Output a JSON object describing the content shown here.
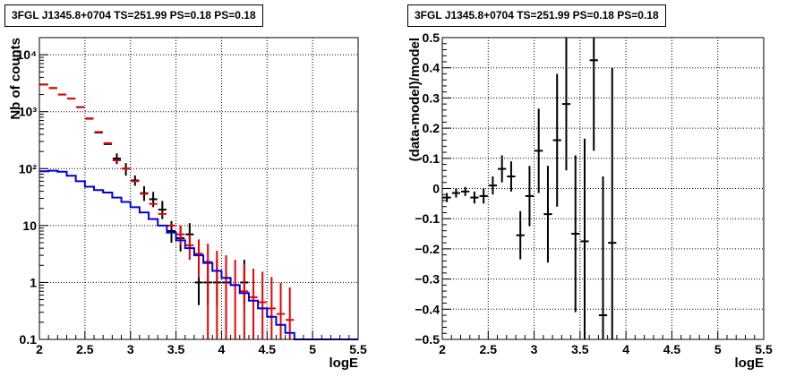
{
  "chart_data": [
    {
      "type": "histogram",
      "title": "3FGL J1345.8+0704 TS=251.99 PS=0.18 PS=0.18",
      "xlabel": "logE",
      "ylabel": "Nb of counts",
      "xlim": [
        2,
        5.5
      ],
      "ylim": [
        0.1,
        20000
      ],
      "yscale": "log",
      "grid": true,
      "x_ticks": [
        "2",
        "2.5",
        "3",
        "3.5",
        "4",
        "4.5",
        "5",
        "5.5"
      ],
      "y_ticks": [
        "0.1",
        "1",
        "10",
        "10²",
        "10³",
        "10⁴"
      ],
      "bin_width": 0.1,
      "series": [
        {
          "color": "#000000",
          "style": "points",
          "x": [
            2.05,
            2.15,
            2.25,
            2.35,
            2.45,
            2.55,
            2.65,
            2.75,
            2.85,
            2.95,
            3.05,
            3.15,
            3.25,
            3.35,
            3.45,
            3.55,
            3.65,
            3.75,
            3.85,
            3.95,
            4.05,
            4.25
          ],
          "y": [
            3000,
            2600,
            2000,
            1700,
            1200,
            760,
            430,
            270,
            150,
            100,
            62,
            37,
            29,
            19,
            8,
            6,
            7,
            1,
            1,
            1,
            1,
            1
          ],
          "yerr_low": [
            0,
            0,
            0,
            0,
            0,
            0,
            0,
            0,
            30,
            25,
            12,
            10,
            8,
            6,
            3,
            2.5,
            3,
            0.6,
            0.6,
            0.6,
            0.6,
            0.6
          ],
          "yerr_high": [
            0,
            0,
            0,
            0,
            0,
            0,
            0,
            0,
            35,
            25,
            14,
            12,
            10,
            8,
            4,
            3.5,
            4,
            1.5,
            1.5,
            1.5,
            1.5,
            1.5
          ]
        },
        {
          "color": "#ee0000",
          "style": "points",
          "x": [
            2.05,
            2.15,
            2.25,
            2.35,
            2.45,
            2.55,
            2.65,
            2.75,
            2.85,
            2.95,
            3.05,
            3.15,
            3.25,
            3.35,
            3.45,
            3.55,
            3.65,
            3.75,
            3.85,
            3.95,
            4.05,
            4.15,
            4.25,
            4.35,
            4.45,
            4.55,
            4.65,
            4.75
          ],
          "y": [
            3000,
            2600,
            2000,
            1700,
            1200,
            750,
            440,
            280,
            140,
            100,
            60,
            36,
            24,
            16,
            10,
            7,
            4.5,
            3.2,
            2.3,
            1.6,
            1.2,
            0.9,
            0.7,
            0.55,
            0.45,
            0.35,
            0.28,
            0.22
          ],
          "yerr_low": [
            0,
            0,
            0,
            0,
            0,
            0,
            0,
            0,
            0,
            0,
            0,
            0,
            0,
            0,
            0,
            2.5,
            2,
            2,
            2.2,
            1.5,
            1.1,
            0.85,
            0.65,
            0.5,
            0.4,
            0.3,
            0.2,
            0.12
          ],
          "yerr_high": [
            0,
            0,
            0,
            0,
            0,
            0,
            0,
            0,
            0,
            0,
            0,
            0,
            0,
            0,
            0,
            3,
            2.5,
            2.5,
            2.5,
            2,
            1.8,
            1.6,
            1.4,
            1.2,
            1.1,
            0.9,
            0.7,
            0.6
          ]
        },
        {
          "color": "#0000dd",
          "style": "step",
          "x_edges": [
            2.0,
            2.1,
            2.2,
            2.3,
            2.4,
            2.5,
            2.6,
            2.7,
            2.8,
            2.9,
            3.0,
            3.1,
            3.2,
            3.3,
            3.4,
            3.5,
            3.6,
            3.7,
            3.8,
            3.9,
            4.0,
            4.1,
            4.2,
            4.3,
            4.4,
            4.5,
            4.6,
            4.7,
            4.8,
            5.5
          ],
          "y": [
            90,
            92,
            88,
            75,
            60,
            48,
            42,
            38,
            31,
            26,
            21,
            17,
            13,
            10,
            7.5,
            5.5,
            4,
            3,
            2.2,
            1.6,
            1.2,
            0.9,
            0.65,
            0.48,
            0.35,
            0.25,
            0.18,
            0.13,
            0.1
          ]
        }
      ]
    },
    {
      "type": "scatter",
      "title": "3FGL J1345.8+0704 TS=251.99 PS=0.18 PS=0.18",
      "xlabel": "logE",
      "ylabel": "(data-model)/model",
      "xlim": [
        2,
        5.5
      ],
      "ylim": [
        -0.5,
        0.5
      ],
      "grid": true,
      "x_ticks": [
        "2",
        "2.5",
        "3",
        "3.5",
        "4",
        "4.5",
        "5",
        "5.5"
      ],
      "y_ticks": [
        "−0.5",
        "−0.4",
        "−0.3",
        "−0.2",
        "−0.1",
        "0",
        "0.1",
        "0.2",
        "0.3",
        "0.4",
        "0.5"
      ],
      "bin_width": 0.1,
      "series": [
        {
          "color": "#000000",
          "x": [
            2.05,
            2.15,
            2.25,
            2.35,
            2.45,
            2.55,
            2.65,
            2.75,
            2.85,
            2.95,
            3.05,
            3.15,
            3.25,
            3.35,
            3.45,
            3.55,
            3.65,
            3.75,
            3.85
          ],
          "y": [
            -0.03,
            -0.015,
            -0.01,
            -0.03,
            -0.025,
            0.01,
            0.065,
            0.04,
            -0.155,
            -0.025,
            0.125,
            -0.085,
            0.16,
            0.28,
            -0.15,
            -0.175,
            0.425,
            -0.42,
            -0.18
          ],
          "yerr": [
            0.015,
            0.015,
            0.015,
            0.02,
            0.025,
            0.03,
            0.045,
            0.05,
            0.08,
            0.1,
            0.14,
            0.16,
            0.22,
            0.22,
            0.26,
            0.34,
            0.3,
            0.46,
            0.58
          ]
        }
      ]
    }
  ]
}
